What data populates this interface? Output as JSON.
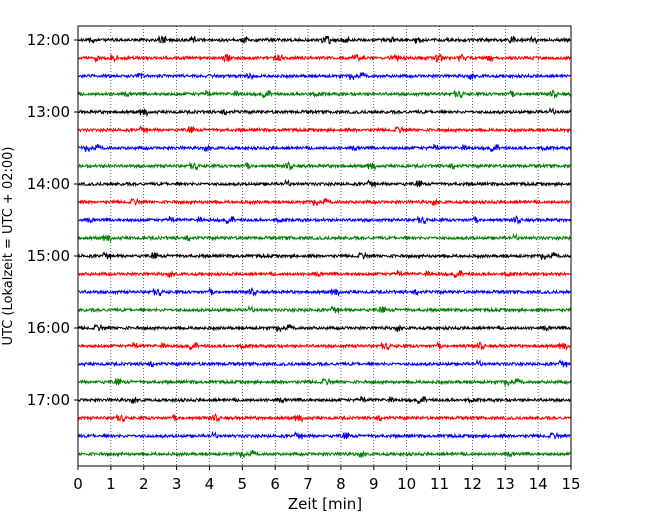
{
  "chart_data": {
    "type": "line",
    "title": "",
    "xlabel": "Zeit  [min]",
    "ylabel": "UTC (Lokalzeit = UTC + 02:00)",
    "xlim": [
      0,
      15
    ],
    "x_ticks": [
      "0",
      "1",
      "2",
      "3",
      "4",
      "5",
      "6",
      "7",
      "8",
      "9",
      "10",
      "11",
      "12",
      "13",
      "14",
      "15"
    ],
    "y_ticks": [
      "12:00",
      "13:00",
      "14:00",
      "15:00",
      "16:00",
      "17:00"
    ],
    "grid": "vertical dotted lines at each minute",
    "trace_colors": [
      "#000000",
      "#ff0000",
      "#0000ff",
      "#008000"
    ],
    "series": [
      {
        "start": "12:00",
        "color": "#000000"
      },
      {
        "start": "12:15",
        "color": "#ff0000"
      },
      {
        "start": "12:30",
        "color": "#0000ff"
      },
      {
        "start": "12:45",
        "color": "#008000"
      },
      {
        "start": "13:00",
        "color": "#000000"
      },
      {
        "start": "13:15",
        "color": "#ff0000"
      },
      {
        "start": "13:30",
        "color": "#0000ff"
      },
      {
        "start": "13:45",
        "color": "#008000"
      },
      {
        "start": "14:00",
        "color": "#000000"
      },
      {
        "start": "14:15",
        "color": "#ff0000"
      },
      {
        "start": "14:30",
        "color": "#0000ff"
      },
      {
        "start": "14:45",
        "color": "#008000"
      },
      {
        "start": "15:00",
        "color": "#000000"
      },
      {
        "start": "15:15",
        "color": "#ff0000"
      },
      {
        "start": "15:30",
        "color": "#0000ff"
      },
      {
        "start": "15:45",
        "color": "#008000"
      },
      {
        "start": "16:00",
        "color": "#000000"
      },
      {
        "start": "16:15",
        "color": "#ff0000"
      },
      {
        "start": "16:30",
        "color": "#0000ff"
      },
      {
        "start": "16:45",
        "color": "#008000"
      },
      {
        "start": "17:00",
        "color": "#000000"
      },
      {
        "start": "17:15",
        "color": "#ff0000"
      },
      {
        "start": "17:30",
        "color": "#0000ff"
      },
      {
        "start": "17:45",
        "color": "#008000"
      }
    ]
  }
}
